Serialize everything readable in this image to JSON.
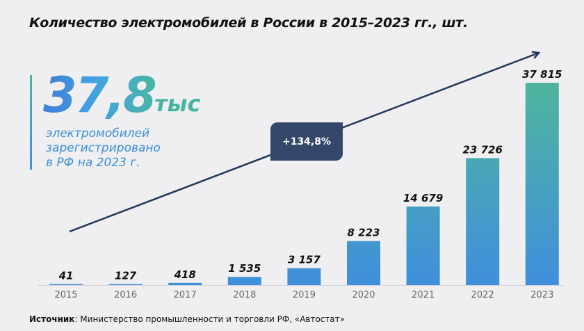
{
  "title": "Количество электромобилей в России в 2015–2023 гг., шт.",
  "kpi": {
    "value": "37,8",
    "unit": "тыс",
    "description": [
      "электромобилей",
      "зарегистрировано",
      "в РФ на 2023 г."
    ]
  },
  "growth_badge": "+134,8%",
  "source": {
    "label": "Источник",
    "text": ": Министерство промышленности и торговли РФ, «Автостат»"
  },
  "colors": {
    "bar_bottom": "#3f8fdc",
    "bar_top": "#4fb59e",
    "arrow": "#22365a",
    "badge": "#34476b"
  },
  "chart_data": {
    "type": "bar",
    "title": "Количество электромобилей в России в 2015–2023 гг., шт.",
    "categories": [
      "2015",
      "2016",
      "2017",
      "2018",
      "2019",
      "2020",
      "2021",
      "2022",
      "2023"
    ],
    "values": [
      41,
      127,
      418,
      1535,
      3157,
      8223,
      14679,
      23726,
      37815
    ],
    "labels": [
      "41",
      "127",
      "418",
      "1 535",
      "3 157",
      "8 223",
      "14 679",
      "23 726",
      "37 815"
    ],
    "ylim": [
      0,
      37815
    ],
    "grid": false,
    "xlabel": "",
    "ylabel": ""
  }
}
